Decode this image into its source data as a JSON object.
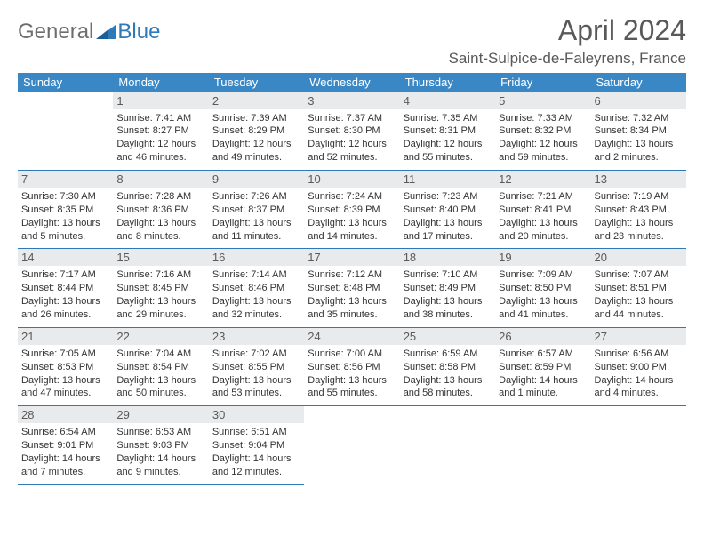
{
  "logo": {
    "text1": "General",
    "text2": "Blue"
  },
  "title": "April 2024",
  "location": "Saint-Sulpice-de-Faleyrens, France",
  "colors": {
    "header_bg": "#3a87c6",
    "border": "#2e79b7",
    "daynum_bg": "#e9eaeb",
    "title_color": "#595959",
    "text_color": "#333333",
    "logo_gray": "#6d6e71",
    "logo_blue": "#2e79b7",
    "background": "#ffffff"
  },
  "typography": {
    "title_fontsize": 32,
    "location_fontsize": 17,
    "header_fontsize": 13,
    "daynum_fontsize": 13,
    "cell_fontsize": 11
  },
  "weekday_headers": [
    "Sunday",
    "Monday",
    "Tuesday",
    "Wednesday",
    "Thursday",
    "Friday",
    "Saturday"
  ],
  "weeks": [
    [
      null,
      {
        "n": "1",
        "sr": "7:41 AM",
        "ss": "8:27 PM",
        "dl": "12 hours and 46 minutes."
      },
      {
        "n": "2",
        "sr": "7:39 AM",
        "ss": "8:29 PM",
        "dl": "12 hours and 49 minutes."
      },
      {
        "n": "3",
        "sr": "7:37 AM",
        "ss": "8:30 PM",
        "dl": "12 hours and 52 minutes."
      },
      {
        "n": "4",
        "sr": "7:35 AM",
        "ss": "8:31 PM",
        "dl": "12 hours and 55 minutes."
      },
      {
        "n": "5",
        "sr": "7:33 AM",
        "ss": "8:32 PM",
        "dl": "12 hours and 59 minutes."
      },
      {
        "n": "6",
        "sr": "7:32 AM",
        "ss": "8:34 PM",
        "dl": "13 hours and 2 minutes."
      }
    ],
    [
      {
        "n": "7",
        "sr": "7:30 AM",
        "ss": "8:35 PM",
        "dl": "13 hours and 5 minutes."
      },
      {
        "n": "8",
        "sr": "7:28 AM",
        "ss": "8:36 PM",
        "dl": "13 hours and 8 minutes."
      },
      {
        "n": "9",
        "sr": "7:26 AM",
        "ss": "8:37 PM",
        "dl": "13 hours and 11 minutes."
      },
      {
        "n": "10",
        "sr": "7:24 AM",
        "ss": "8:39 PM",
        "dl": "13 hours and 14 minutes."
      },
      {
        "n": "11",
        "sr": "7:23 AM",
        "ss": "8:40 PM",
        "dl": "13 hours and 17 minutes."
      },
      {
        "n": "12",
        "sr": "7:21 AM",
        "ss": "8:41 PM",
        "dl": "13 hours and 20 minutes."
      },
      {
        "n": "13",
        "sr": "7:19 AM",
        "ss": "8:43 PM",
        "dl": "13 hours and 23 minutes."
      }
    ],
    [
      {
        "n": "14",
        "sr": "7:17 AM",
        "ss": "8:44 PM",
        "dl": "13 hours and 26 minutes."
      },
      {
        "n": "15",
        "sr": "7:16 AM",
        "ss": "8:45 PM",
        "dl": "13 hours and 29 minutes."
      },
      {
        "n": "16",
        "sr": "7:14 AM",
        "ss": "8:46 PM",
        "dl": "13 hours and 32 minutes."
      },
      {
        "n": "17",
        "sr": "7:12 AM",
        "ss": "8:48 PM",
        "dl": "13 hours and 35 minutes."
      },
      {
        "n": "18",
        "sr": "7:10 AM",
        "ss": "8:49 PM",
        "dl": "13 hours and 38 minutes."
      },
      {
        "n": "19",
        "sr": "7:09 AM",
        "ss": "8:50 PM",
        "dl": "13 hours and 41 minutes."
      },
      {
        "n": "20",
        "sr": "7:07 AM",
        "ss": "8:51 PM",
        "dl": "13 hours and 44 minutes."
      }
    ],
    [
      {
        "n": "21",
        "sr": "7:05 AM",
        "ss": "8:53 PM",
        "dl": "13 hours and 47 minutes."
      },
      {
        "n": "22",
        "sr": "7:04 AM",
        "ss": "8:54 PM",
        "dl": "13 hours and 50 minutes."
      },
      {
        "n": "23",
        "sr": "7:02 AM",
        "ss": "8:55 PM",
        "dl": "13 hours and 53 minutes."
      },
      {
        "n": "24",
        "sr": "7:00 AM",
        "ss": "8:56 PM",
        "dl": "13 hours and 55 minutes."
      },
      {
        "n": "25",
        "sr": "6:59 AM",
        "ss": "8:58 PM",
        "dl": "13 hours and 58 minutes."
      },
      {
        "n": "26",
        "sr": "6:57 AM",
        "ss": "8:59 PM",
        "dl": "14 hours and 1 minute."
      },
      {
        "n": "27",
        "sr": "6:56 AM",
        "ss": "9:00 PM",
        "dl": "14 hours and 4 minutes."
      }
    ],
    [
      {
        "n": "28",
        "sr": "6:54 AM",
        "ss": "9:01 PM",
        "dl": "14 hours and 7 minutes."
      },
      {
        "n": "29",
        "sr": "6:53 AM",
        "ss": "9:03 PM",
        "dl": "14 hours and 9 minutes."
      },
      {
        "n": "30",
        "sr": "6:51 AM",
        "ss": "9:04 PM",
        "dl": "14 hours and 12 minutes."
      },
      null,
      null,
      null,
      null
    ]
  ],
  "labels": {
    "sunrise": "Sunrise: ",
    "sunset": "Sunset: ",
    "daylight": "Daylight: "
  }
}
